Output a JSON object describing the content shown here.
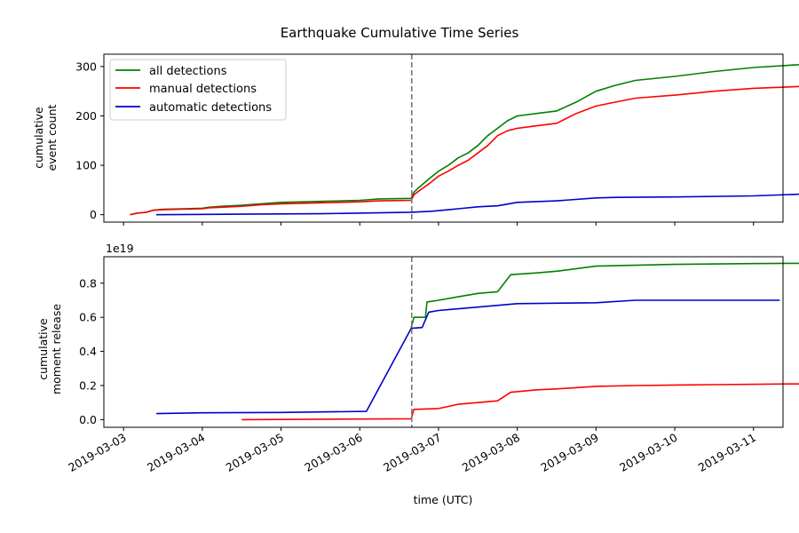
{
  "chart_data": {
    "type": "line",
    "title": "Earthquake Cumulative Time Series",
    "xlabel": "time (UTC)",
    "shared_x": true,
    "xlim": [
      "2019-03-02T18:00",
      "2019-03-11T09:00"
    ],
    "x_ticks": [
      "2019-03-03",
      "2019-03-04",
      "2019-03-05",
      "2019-03-06",
      "2019-03-07",
      "2019-03-08",
      "2019-03-09",
      "2019-03-10",
      "2019-03-11"
    ],
    "vline": {
      "x": "2019-03-06T15:50",
      "style": "dashed",
      "color": "#777777"
    },
    "panels": [
      {
        "ylabel": [
          "cumulative",
          "event count"
        ],
        "ylim": [
          -15,
          325
        ],
        "yticks": [
          0,
          100,
          200,
          300
        ],
        "y_tick_labels": [
          "0",
          "100",
          "200",
          "300"
        ],
        "legend": "top-left",
        "series": [
          {
            "name": "all detections",
            "color": "#008000",
            "points": [
              [
                "2019-03-03T02:00",
                0
              ],
              [
                "2019-03-03T04:00",
                3
              ],
              [
                "2019-03-03T07:00",
                5
              ],
              [
                "2019-03-03T09:00",
                9
              ],
              [
                "2019-03-03T12:00",
                11
              ],
              [
                "2019-03-03T18:00",
                12
              ],
              [
                "2019-03-04T00:00",
                13
              ],
              [
                "2019-03-04T02:00",
                15
              ],
              [
                "2019-03-04T06:00",
                17
              ],
              [
                "2019-03-04T12:00",
                19
              ],
              [
                "2019-03-04T18:00",
                22
              ],
              [
                "2019-03-05T00:00",
                25
              ],
              [
                "2019-03-05T12:00",
                27
              ],
              [
                "2019-03-06T00:00",
                29
              ],
              [
                "2019-03-06T06:00",
                32
              ],
              [
                "2019-03-06T15:40",
                33
              ],
              [
                "2019-03-06T16:30",
                45
              ],
              [
                "2019-03-06T18:00",
                55
              ],
              [
                "2019-03-06T21:00",
                72
              ],
              [
                "2019-03-07T00:00",
                88
              ],
              [
                "2019-03-07T03:00",
                100
              ],
              [
                "2019-03-07T06:00",
                115
              ],
              [
                "2019-03-07T09:00",
                125
              ],
              [
                "2019-03-07T12:00",
                140
              ],
              [
                "2019-03-07T15:00",
                160
              ],
              [
                "2019-03-07T18:00",
                175
              ],
              [
                "2019-03-07T21:00",
                190
              ],
              [
                "2019-03-08T00:00",
                200
              ],
              [
                "2019-03-08T06:00",
                205
              ],
              [
                "2019-03-08T12:00",
                210
              ],
              [
                "2019-03-08T18:00",
                228
              ],
              [
                "2019-03-09T00:00",
                250
              ],
              [
                "2019-03-09T06:00",
                262
              ],
              [
                "2019-03-09T12:00",
                272
              ],
              [
                "2019-03-10T00:00",
                280
              ],
              [
                "2019-03-10T12:00",
                290
              ],
              [
                "2019-03-11T00:00",
                298
              ],
              [
                "2019-03-11T12:00",
                303
              ],
              [
                "2019-03-11T23:00",
                307
              ]
            ]
          },
          {
            "name": "manual detections",
            "color": "#ff0000",
            "points": [
              [
                "2019-03-03T02:00",
                0
              ],
              [
                "2019-03-03T04:00",
                3
              ],
              [
                "2019-03-03T07:00",
                5
              ],
              [
                "2019-03-03T09:00",
                9
              ],
              [
                "2019-03-03T12:00",
                10
              ],
              [
                "2019-03-03T18:00",
                11
              ],
              [
                "2019-03-04T00:00",
                12
              ],
              [
                "2019-03-04T02:00",
                14
              ],
              [
                "2019-03-04T06:00",
                15
              ],
              [
                "2019-03-04T12:00",
                17
              ],
              [
                "2019-03-04T18:00",
                20
              ],
              [
                "2019-03-05T00:00",
                22
              ],
              [
                "2019-03-05T12:00",
                24
              ],
              [
                "2019-03-06T00:00",
                26
              ],
              [
                "2019-03-06T06:00",
                28
              ],
              [
                "2019-03-06T15:40",
                29
              ],
              [
                "2019-03-06T16:30",
                40
              ],
              [
                "2019-03-06T18:00",
                48
              ],
              [
                "2019-03-06T21:00",
                62
              ],
              [
                "2019-03-07T00:00",
                78
              ],
              [
                "2019-03-07T03:00",
                88
              ],
              [
                "2019-03-07T06:00",
                100
              ],
              [
                "2019-03-07T09:00",
                110
              ],
              [
                "2019-03-07T12:00",
                125
              ],
              [
                "2019-03-07T15:00",
                140
              ],
              [
                "2019-03-07T18:00",
                160
              ],
              [
                "2019-03-07T21:00",
                170
              ],
              [
                "2019-03-08T00:00",
                175
              ],
              [
                "2019-03-08T06:00",
                180
              ],
              [
                "2019-03-08T12:00",
                185
              ],
              [
                "2019-03-08T18:00",
                205
              ],
              [
                "2019-03-09T00:00",
                220
              ],
              [
                "2019-03-09T06:00",
                228
              ],
              [
                "2019-03-09T12:00",
                236
              ],
              [
                "2019-03-10T00:00",
                242
              ],
              [
                "2019-03-10T12:00",
                250
              ],
              [
                "2019-03-11T00:00",
                256
              ],
              [
                "2019-03-11T12:00",
                259
              ],
              [
                "2019-03-11T18:00",
                261
              ]
            ]
          },
          {
            "name": "automatic detections",
            "color": "#0000cc",
            "points": [
              [
                "2019-03-03T10:00",
                0
              ],
              [
                "2019-03-04T12:00",
                1
              ],
              [
                "2019-03-05T12:00",
                2
              ],
              [
                "2019-03-06T15:40",
                5
              ],
              [
                "2019-03-06T22:00",
                7
              ],
              [
                "2019-03-07T06:00",
                12
              ],
              [
                "2019-03-07T12:00",
                16
              ],
              [
                "2019-03-07T18:00",
                18
              ],
              [
                "2019-03-08T00:00",
                25
              ],
              [
                "2019-03-08T12:00",
                28
              ],
              [
                "2019-03-09T00:00",
                34
              ],
              [
                "2019-03-09T06:00",
                35
              ],
              [
                "2019-03-10T00:00",
                36
              ],
              [
                "2019-03-11T00:00",
                38
              ],
              [
                "2019-03-11T12:00",
                41
              ],
              [
                "2019-03-11T23:00",
                44
              ]
            ]
          }
        ]
      },
      {
        "ylabel": [
          "cumulative",
          "moment release"
        ],
        "y_multiplier": "1e19",
        "ylim": [
          -0.045,
          0.955
        ],
        "yticks": [
          0.0,
          0.2,
          0.4,
          0.6,
          0.8
        ],
        "y_tick_labels": [
          "0.0",
          "0.2",
          "0.4",
          "0.6",
          "0.8"
        ],
        "series": [
          {
            "name": "all detections",
            "color": "#008000",
            "points": [
              [
                "2019-03-06T15:40",
                0.54
              ],
              [
                "2019-03-06T16:30",
                0.6
              ],
              [
                "2019-03-06T20:00",
                0.6
              ],
              [
                "2019-03-06T20:30",
                0.69
              ],
              [
                "2019-03-07T00:00",
                0.7
              ],
              [
                "2019-03-07T06:00",
                0.72
              ],
              [
                "2019-03-07T12:00",
                0.74
              ],
              [
                "2019-03-07T18:00",
                0.75
              ],
              [
                "2019-03-07T22:00",
                0.85
              ],
              [
                "2019-03-08T06:00",
                0.86
              ],
              [
                "2019-03-08T12:00",
                0.87
              ],
              [
                "2019-03-09T00:00",
                0.9
              ],
              [
                "2019-03-10T00:00",
                0.91
              ],
              [
                "2019-03-11T00:00",
                0.915
              ],
              [
                "2019-03-11T18:00",
                0.917
              ]
            ]
          },
          {
            "name": "manual detections",
            "color": "#ff0000",
            "points": [
              [
                "2019-03-04T12:00",
                0.0
              ],
              [
                "2019-03-06T15:40",
                0.005
              ],
              [
                "2019-03-06T16:30",
                0.06
              ],
              [
                "2019-03-07T00:00",
                0.065
              ],
              [
                "2019-03-07T06:00",
                0.09
              ],
              [
                "2019-03-07T12:00",
                0.1
              ],
              [
                "2019-03-07T18:00",
                0.11
              ],
              [
                "2019-03-07T22:00",
                0.16
              ],
              [
                "2019-03-08T06:00",
                0.175
              ],
              [
                "2019-03-08T12:00",
                0.18
              ],
              [
                "2019-03-09T00:00",
                0.195
              ],
              [
                "2019-03-09T12:00",
                0.2
              ],
              [
                "2019-03-10T12:00",
                0.205
              ],
              [
                "2019-03-11T18:00",
                0.21
              ]
            ]
          },
          {
            "name": "automatic detections",
            "color": "#0000cc",
            "points": [
              [
                "2019-03-03T10:00",
                0.035
              ],
              [
                "2019-03-04T00:00",
                0.04
              ],
              [
                "2019-03-05T00:00",
                0.042
              ],
              [
                "2019-03-06T02:00",
                0.048
              ],
              [
                "2019-03-06T15:40",
                0.535
              ],
              [
                "2019-03-06T19:00",
                0.54
              ],
              [
                "2019-03-06T21:00",
                0.63
              ],
              [
                "2019-03-07T00:00",
                0.64
              ],
              [
                "2019-03-08T00:00",
                0.68
              ],
              [
                "2019-03-09T00:00",
                0.685
              ],
              [
                "2019-03-09T12:00",
                0.7
              ],
              [
                "2019-03-11T08:00",
                0.7
              ]
            ]
          }
        ]
      }
    ]
  }
}
